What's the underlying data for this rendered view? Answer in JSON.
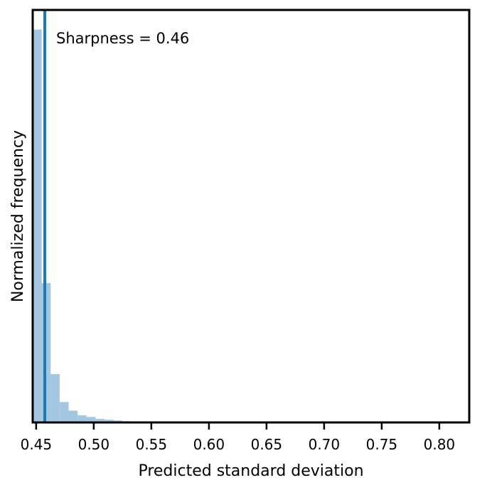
{
  "chart_data": {
    "type": "bar",
    "subtype": "histogram",
    "xlabel": "Predicted standard deviation",
    "ylabel": "Normalized frequency",
    "xlim": [
      0.447,
      0.826
    ],
    "ylim": [
      0,
      1.05
    ],
    "y_ticks_shown": false,
    "grid": false,
    "x_ticks": [
      0.45,
      0.5,
      0.55,
      0.6,
      0.65,
      0.7,
      0.75,
      0.8
    ],
    "x_tick_labels": [
      "0.45",
      "0.50",
      "0.55",
      "0.60",
      "0.65",
      "0.70",
      "0.75",
      "0.80"
    ],
    "bin_width": 0.0078,
    "bins": [
      {
        "x0": 0.447,
        "value": 1.0
      },
      {
        "x0": 0.4548,
        "value": 0.355
      },
      {
        "x0": 0.4626,
        "value": 0.123
      },
      {
        "x0": 0.4704,
        "value": 0.052
      },
      {
        "x0": 0.4782,
        "value": 0.03
      },
      {
        "x0": 0.486,
        "value": 0.018
      },
      {
        "x0": 0.4938,
        "value": 0.014
      },
      {
        "x0": 0.5016,
        "value": 0.009
      },
      {
        "x0": 0.5094,
        "value": 0.007
      },
      {
        "x0": 0.5172,
        "value": 0.005
      },
      {
        "x0": 0.525,
        "value": 0.003
      },
      {
        "x0": 0.5328,
        "value": 0.002
      },
      {
        "x0": 0.5406,
        "value": 0.0015
      },
      {
        "x0": 0.5484,
        "value": 0.001
      },
      {
        "x0": 0.5562,
        "value": 0.0008
      },
      {
        "x0": 0.564,
        "value": 0.0006
      },
      {
        "x0": 0.5718,
        "value": 0.0005
      },
      {
        "x0": 0.5796,
        "value": 0.0004
      }
    ],
    "vline": {
      "x": 0.4575
    },
    "annotation": "Sharpness = 0.46",
    "colors": {
      "bars": "#a3c7e0",
      "vline": "#1f77b4",
      "axes": "#000000"
    }
  }
}
